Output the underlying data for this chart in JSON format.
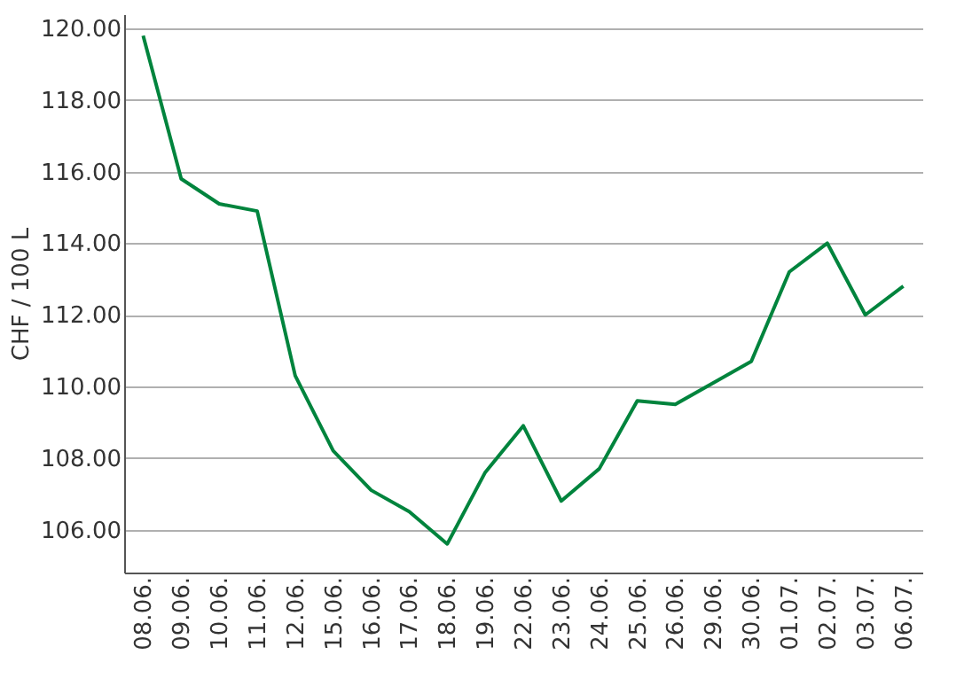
{
  "chart_data": {
    "type": "line",
    "ylabel": "CHF / 100 L",
    "categories": [
      "08.06.",
      "09.06.",
      "10.06.",
      "11.06.",
      "12.06.",
      "15.06.",
      "16.06.",
      "17.06.",
      "18.06.",
      "19.06.",
      "22.06.",
      "23.06.",
      "24.06.",
      "25.06.",
      "26.06.",
      "29.06.",
      "30.06.",
      "01.07.",
      "02.07.",
      "03.07.",
      "06.07."
    ],
    "series": [
      {
        "color": "#00843d",
        "values": [
          119.8,
          115.8,
          115.1,
          114.9,
          110.3,
          108.2,
          107.1,
          106.5,
          105.6,
          107.6,
          108.9,
          106.8,
          107.7,
          109.6,
          109.5,
          110.1,
          110.7,
          113.2,
          114.0,
          112.0,
          112.8
        ]
      }
    ],
    "ylim": [
      104.8,
      120.4
    ],
    "yticks": [
      {
        "value": 106,
        "label": "106.00"
      },
      {
        "value": 108,
        "label": "108.00"
      },
      {
        "value": 110,
        "label": "110.00"
      },
      {
        "value": 112,
        "label": "112.00"
      },
      {
        "value": 114,
        "label": "114.00"
      },
      {
        "value": 116,
        "label": "116.00"
      },
      {
        "value": 118,
        "label": "118.00"
      },
      {
        "value": 120,
        "label": "120.00"
      }
    ],
    "grid": "y",
    "marker": "none",
    "line_style": "solid"
  }
}
